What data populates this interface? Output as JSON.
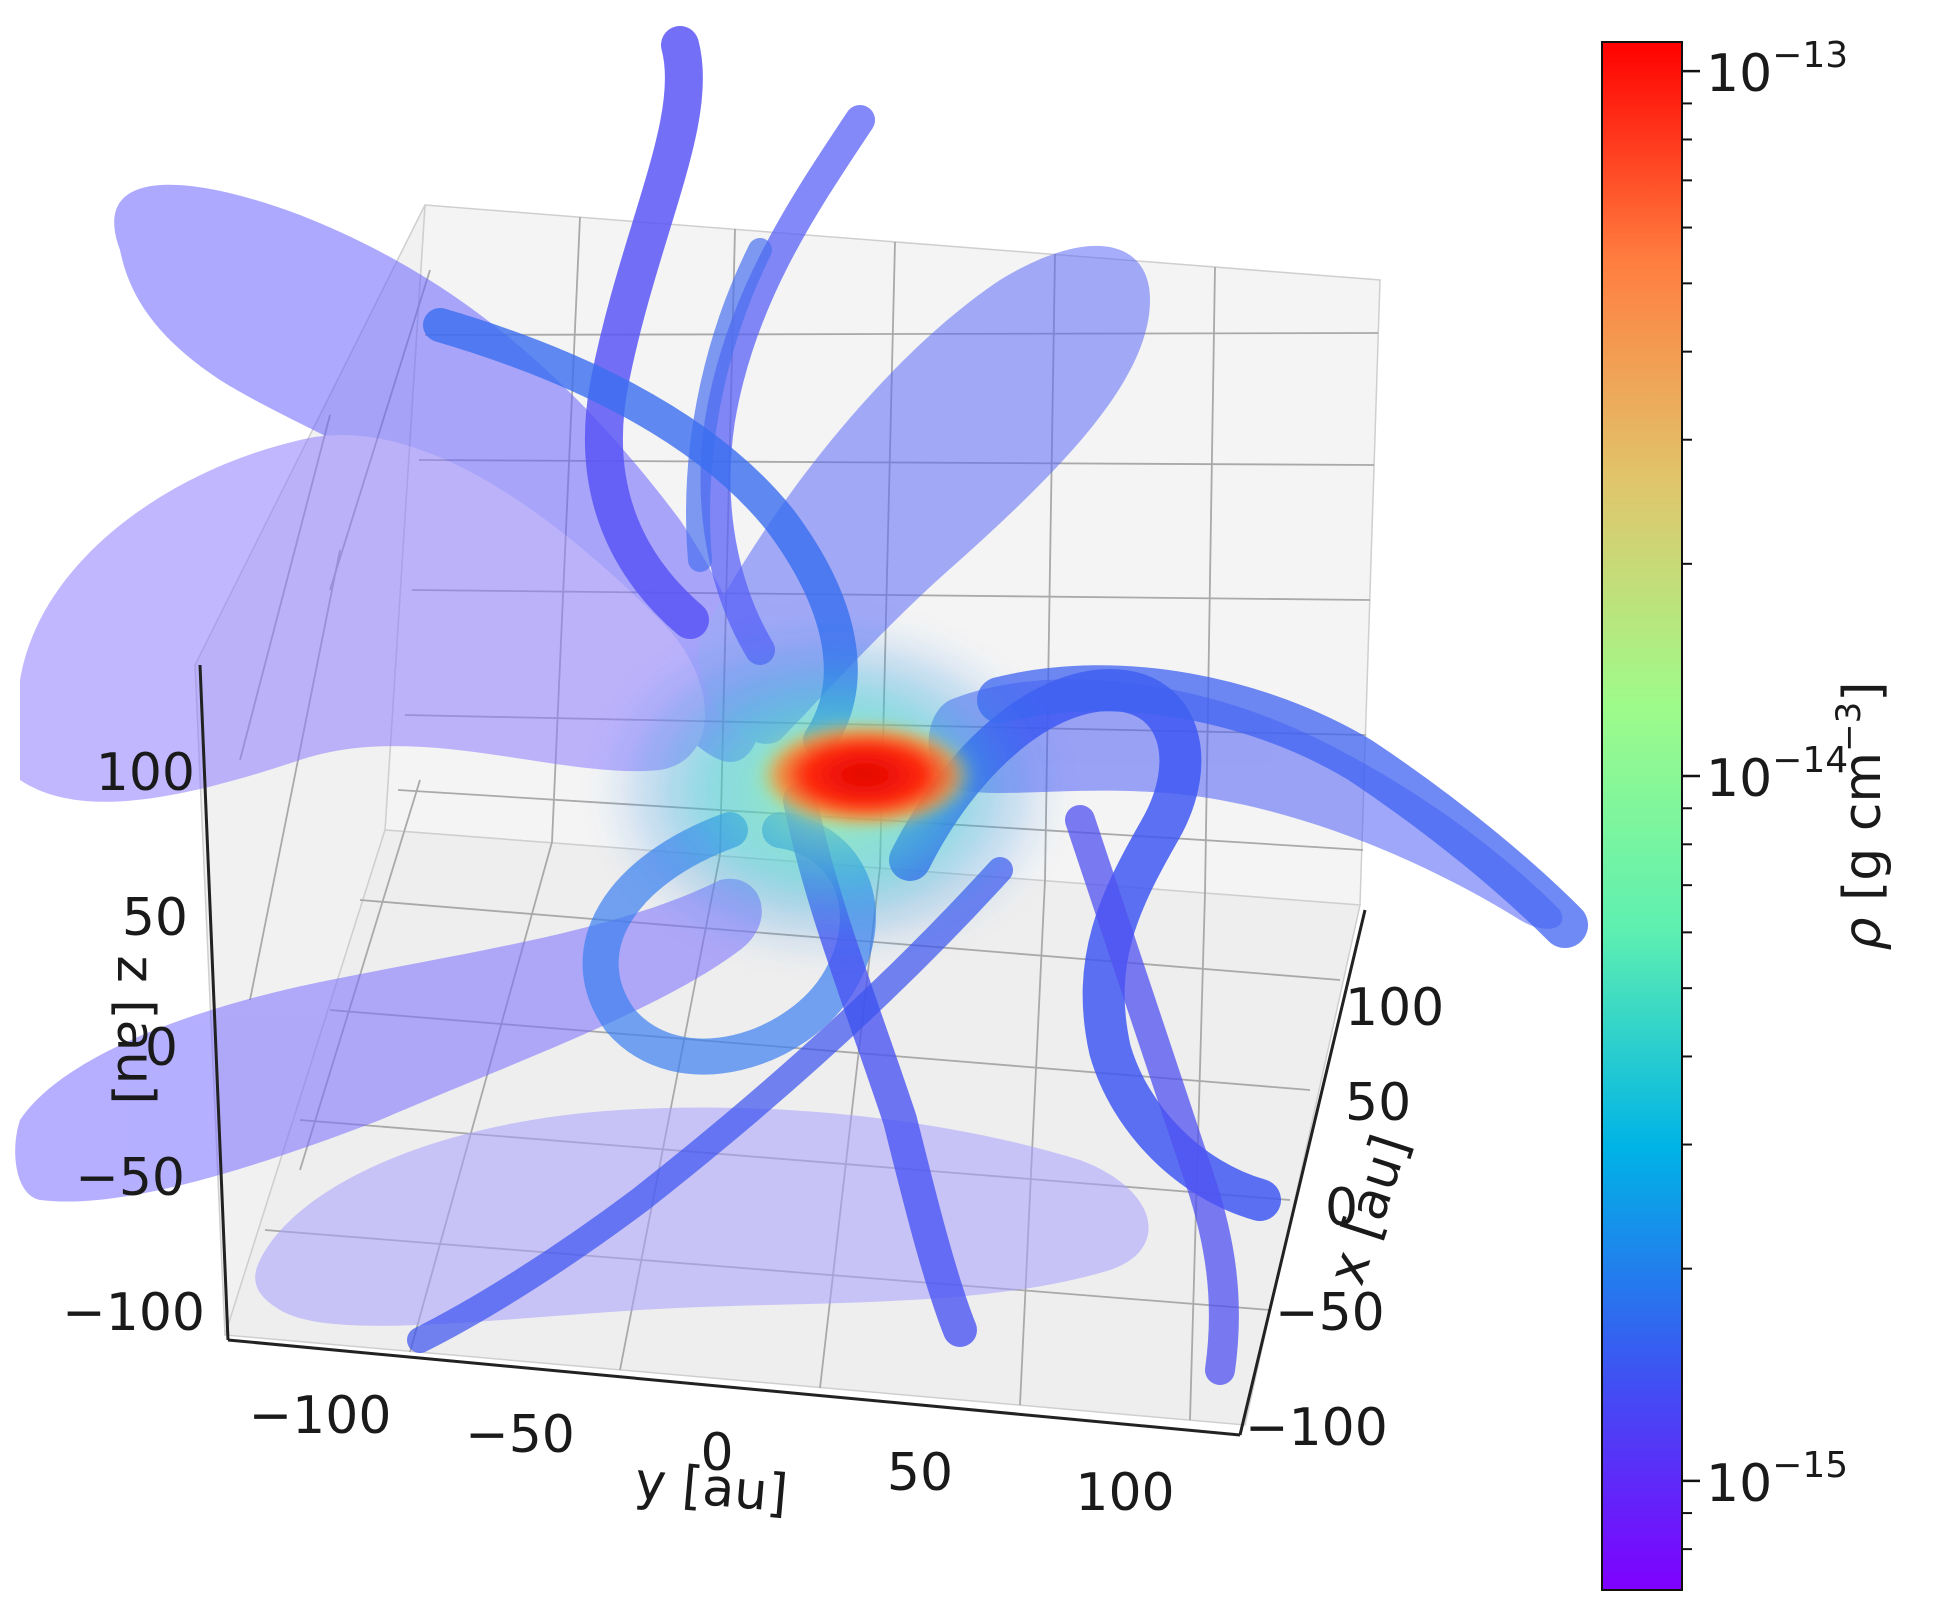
{
  "chart_data": {
    "type": "scatter",
    "subtype": "3d-volume-render",
    "title": "",
    "axes": {
      "x": {
        "label": "x [au]",
        "ticks": [
          "−100",
          "−50",
          "0",
          "50",
          "100"
        ],
        "range": [
          -125,
          125
        ]
      },
      "y": {
        "label": "y [au]",
        "ticks": [
          "−100",
          "−50",
          "0",
          "50",
          "100"
        ],
        "range": [
          -125,
          125
        ]
      },
      "z": {
        "label": "z [au]",
        "ticks": [
          "−100",
          "−50",
          "0",
          "50",
          "100"
        ],
        "range": [
          -125,
          125
        ]
      }
    },
    "colorbar": {
      "label_var": "ρ",
      "label_unit": "[g cm",
      "label_exp": "−3",
      "label_close": "]",
      "scale": "log",
      "range": [
        7e-16,
        1.1e-13
      ],
      "colormap": "rainbow",
      "colors": [
        "#7f00ff",
        "#3c55f2",
        "#00b3e6",
        "#5ff0b0",
        "#9efb8a",
        "#e0c66c",
        "#ff7f40",
        "#ff0000"
      ],
      "major_ticks": [
        {
          "base": "10",
          "exp": "−15",
          "value": 1e-15
        },
        {
          "base": "10",
          "exp": "−14",
          "value": 1e-14
        },
        {
          "base": "10",
          "exp": "−13",
          "value": 1e-13
        }
      ]
    },
    "grid": true,
    "pane_color": "#f2f2f2",
    "arms_color": "#4a4af5",
    "core_color": "#e01010"
  }
}
